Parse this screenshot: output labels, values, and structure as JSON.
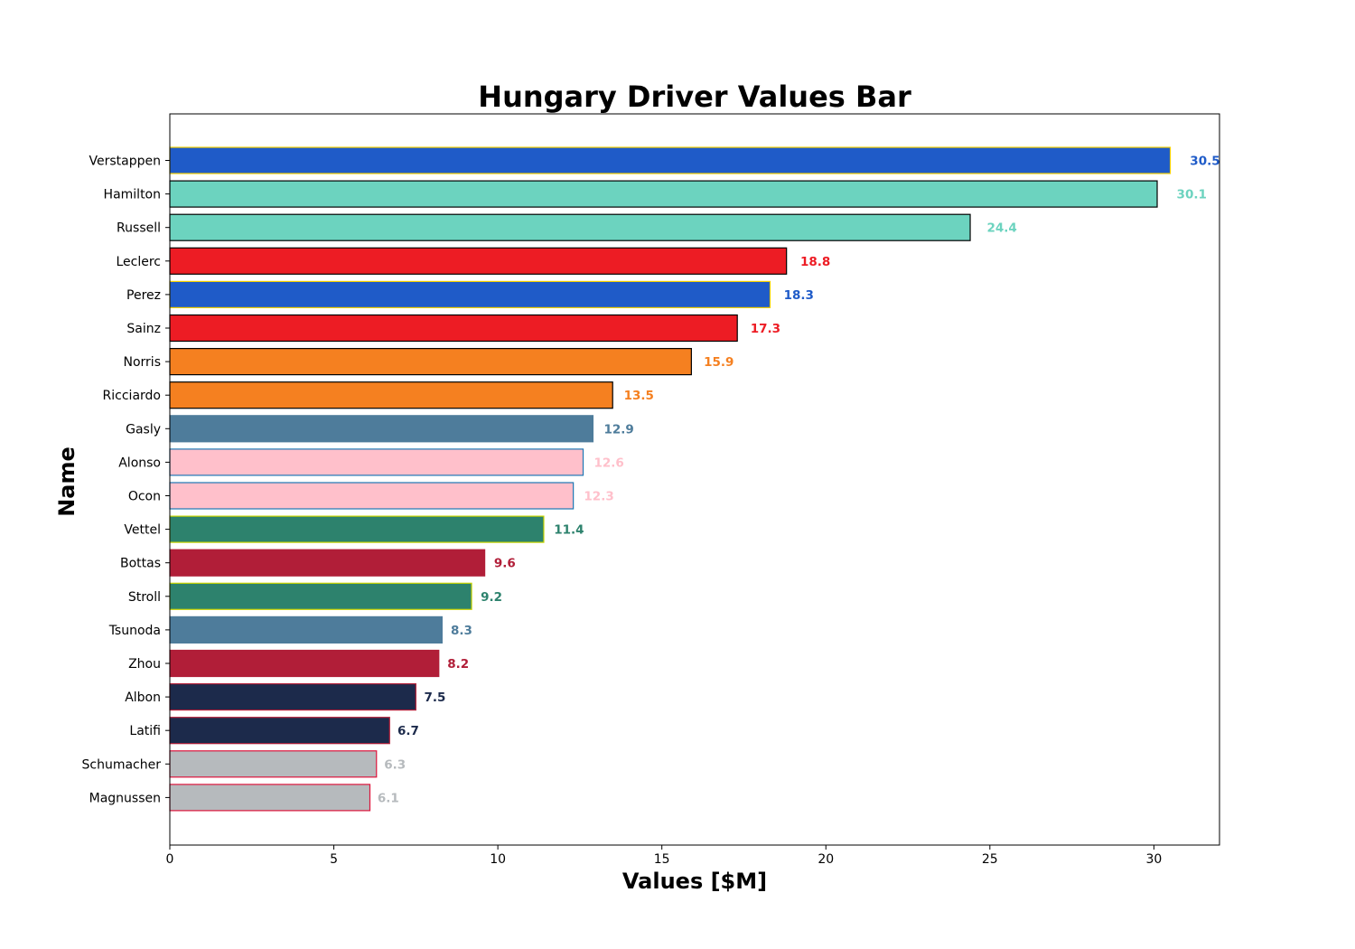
{
  "chart_data": {
    "type": "bar",
    "orientation": "horizontal",
    "title": "Hungary Driver Values Bar",
    "xlabel": "Values [$M]",
    "ylabel": "Name",
    "xlim": [
      0,
      32
    ],
    "xticks": [
      0,
      5,
      10,
      15,
      20,
      25,
      30
    ],
    "grid": false,
    "categories": [
      "Verstappen",
      "Hamilton",
      "Russell",
      "Leclerc",
      "Perez",
      "Sainz",
      "Norris",
      "Ricciardo",
      "Gasly",
      "Alonso",
      "Ocon",
      "Vettel",
      "Bottas",
      "Stroll",
      "Tsunoda",
      "Zhou",
      "Albon",
      "Latifi",
      "Schumacher",
      "Magnussen"
    ],
    "values": [
      30.5,
      30.1,
      24.4,
      18.8,
      18.3,
      17.3,
      15.9,
      13.5,
      12.9,
      12.6,
      12.3,
      11.4,
      9.6,
      9.2,
      8.3,
      8.2,
      7.5,
      6.7,
      6.3,
      6.1
    ],
    "value_labels": [
      "30.5",
      "30.1",
      "24.4",
      "18.8",
      "18.3",
      "17.3",
      "15.9",
      "13.5",
      "12.9",
      "12.6",
      "12.3",
      "11.4",
      "9.6",
      "9.2",
      "8.3",
      "8.2",
      "7.5",
      "6.7",
      "6.3",
      "6.1"
    ],
    "colors": [
      "#1f5bc8",
      "#6cd3bf",
      "#6cd3bf",
      "#ed1c24",
      "#1f5bc8",
      "#ed1c24",
      "#f58020",
      "#f58020",
      "#4e7c9b",
      "#ffc0cb",
      "#ffc0cb",
      "#2d826d",
      "#b11e38",
      "#2d826d",
      "#4e7c9b",
      "#b11e38",
      "#1c2a4b",
      "#1c2a4b",
      "#b6babd",
      "#b6babd"
    ],
    "edge_colors": [
      "#f5d000",
      "#000000",
      "#000000",
      "#000000",
      "#f5d000",
      "#000000",
      "#000000",
      "#000000",
      "#4e7c9b",
      "#1f77b4",
      "#1f77b4",
      "#c8d400",
      "#b11e38",
      "#c8d400",
      "#4e7c9b",
      "#b11e38",
      "#b11e38",
      "#b11e38",
      "#dc143c",
      "#dc143c"
    ]
  }
}
